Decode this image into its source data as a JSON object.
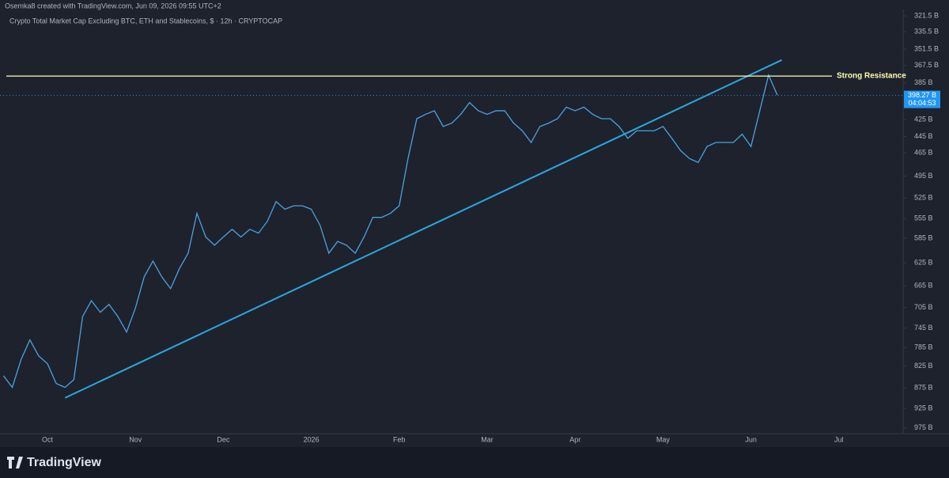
{
  "header": "Osemka8 created with TradingView.com, Jun 09, 2026 09:55 UTC+2",
  "footer": {
    "logo": "TradingView"
  },
  "chart_data": {
    "type": "line",
    "title": "Crypto Total Market Cap Excluding BTC, ETH and Stablecoins, $ · 12h · CRYPTOCAP",
    "categories": [
      null,
      null,
      null,
      null,
      null,
      "Oct",
      null,
      null,
      null,
      null,
      null,
      null,
      null,
      null,
      null,
      "Nov",
      null,
      null,
      null,
      null,
      null,
      null,
      null,
      null,
      null,
      "Dec",
      null,
      null,
      null,
      null,
      null,
      null,
      null,
      null,
      null,
      "2026",
      null,
      null,
      null,
      null,
      null,
      null,
      null,
      null,
      null,
      "Feb",
      null,
      null,
      null,
      null,
      null,
      null,
      null,
      null,
      null,
      "Mar",
      null,
      null,
      null,
      null,
      null,
      null,
      null,
      null,
      null,
      "Apr",
      null,
      null,
      null,
      null,
      null,
      null,
      null,
      null,
      null,
      "May",
      null,
      null,
      null,
      null,
      null,
      null,
      null,
      null,
      null,
      "Jun",
      null,
      null,
      null,
      null,
      null,
      null,
      null,
      null,
      null,
      "Jul"
    ],
    "series": [
      {
        "color": "#4aa3df",
        "values": [
          847,
          874,
          811,
          769,
          803,
          820,
          865,
          874,
          856,
          722,
          692,
          714,
          699,
          722,
          753,
          706,
          649,
          622,
          649,
          670,
          635,
          609,
          547,
          583,
          596,
          583,
          571,
          583,
          571,
          577,
          559,
          530,
          541,
          536,
          536,
          541,
          565,
          609,
          590,
          596,
          609,
          583,
          553,
          553,
          547,
          536,
          472,
          424,
          419,
          415,
          433,
          429,
          419,
          406,
          415,
          419,
          415,
          415,
          429,
          438,
          452,
          433,
          429,
          424,
          411,
          415,
          411,
          419,
          424,
          424,
          433,
          447,
          438,
          438,
          438,
          433,
          447,
          462,
          472,
          477,
          457,
          452,
          452,
          452,
          442,
          457,
          415,
          377,
          398,
          null,
          null,
          null,
          null,
          null,
          null,
          null
        ]
      }
    ],
    "ylim": [
      316,
      990
    ],
    "log": true,
    "inverted": true,
    "yticks": [
      {
        "value": 321.5,
        "label": "321.5 B"
      },
      {
        "value": 335.5,
        "label": "335.5 B"
      },
      {
        "value": 351.5,
        "label": "351.5 B"
      },
      {
        "value": 367.5,
        "label": "367.5 B"
      },
      {
        "value": 385,
        "label": "385 B"
      },
      {
        "value": 425,
        "label": "425 B"
      },
      {
        "value": 445,
        "label": "445 B"
      },
      {
        "value": 465,
        "label": "465 B"
      },
      {
        "value": 495,
        "label": "495 B"
      },
      {
        "value": 525,
        "label": "525 B"
      },
      {
        "value": 555,
        "label": "555 B"
      },
      {
        "value": 585,
        "label": "585 B"
      },
      {
        "value": 625,
        "label": "625 B"
      },
      {
        "value": 665,
        "label": "665 B"
      },
      {
        "value": 705,
        "label": "705 B"
      },
      {
        "value": 745,
        "label": "745 B"
      },
      {
        "value": 785,
        "label": "785 B"
      },
      {
        "value": 825,
        "label": "825 B"
      },
      {
        "value": 875,
        "label": "875 B"
      },
      {
        "value": 925,
        "label": "925 B"
      },
      {
        "value": 975,
        "label": "975 B"
      }
    ],
    "last_price": {
      "value": 398.27,
      "label": "398.27 B",
      "countdown": "04:04:53",
      "color": "#2196f3"
    },
    "resistance": {
      "label": "Strong Resistance",
      "value": 378,
      "color": "#ffffb0"
    },
    "trendline": {
      "x": [
        7,
        88.5
      ],
      "values": [
        899,
        362
      ],
      "color": "#29a8e0"
    }
  }
}
